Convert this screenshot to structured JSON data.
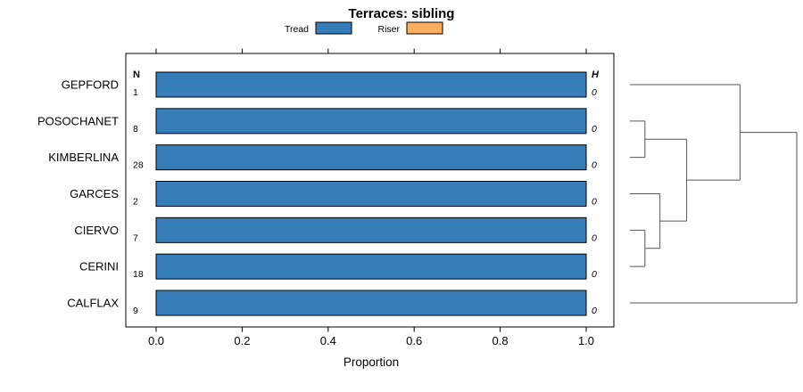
{
  "chart_data": {
    "type": "bar",
    "orientation": "horizontal",
    "title": "Terraces: sibling",
    "xlabel": "Proportion",
    "xlim": [
      0,
      1
    ],
    "x_ticks": [
      0.0,
      0.2,
      0.4,
      0.6,
      0.8,
      1.0
    ],
    "x_tick_labels": [
      "0.0",
      "0.2",
      "0.4",
      "0.6",
      "0.8",
      "1.0"
    ],
    "grid": false,
    "legend_position": "top",
    "series": [
      {
        "name": "Tread",
        "color": "#377EB8"
      },
      {
        "name": "Riser",
        "color": "#FDAE61"
      }
    ],
    "annotations": {
      "n_header": "N",
      "h_header": "H"
    },
    "rows": [
      {
        "label": "GEPFORD",
        "n": "1",
        "h": "0",
        "tread": 1.0,
        "riser": 0.0
      },
      {
        "label": "POSOCHANET",
        "n": "8",
        "h": "0",
        "tread": 1.0,
        "riser": 0.0
      },
      {
        "label": "KIMBERLINA",
        "n": "28",
        "h": "0",
        "tread": 1.0,
        "riser": 0.0
      },
      {
        "label": "GARCES",
        "n": "2",
        "h": "0",
        "tread": 1.0,
        "riser": 0.0
      },
      {
        "label": "CIERVO",
        "n": "7",
        "h": "0",
        "tread": 1.0,
        "riser": 0.0
      },
      {
        "label": "CERINI",
        "n": "18",
        "h": "0",
        "tread": 1.0,
        "riser": 0.0
      },
      {
        "label": "CALFLAX",
        "n": "9",
        "h": "0",
        "tread": 1.0,
        "riser": 0.0
      }
    ],
    "dendrogram": {
      "leaves": [
        "GEPFORD",
        "POSOCHANET",
        "KIMBERLINA",
        "GARCES",
        "CIERVO",
        "CERINI",
        "CALFLAX"
      ],
      "merges": [
        {
          "id": "m1",
          "a": "POSOCHANET",
          "b": "KIMBERLINA",
          "height": 0.09
        },
        {
          "id": "m2",
          "a": "CIERVO",
          "b": "CERINI",
          "height": 0.09
        },
        {
          "id": "m3",
          "a": "GARCES",
          "b": "m2",
          "height": 0.18
        },
        {
          "id": "m4",
          "a": "m1",
          "b": "m3",
          "height": 0.34
        },
        {
          "id": "m5",
          "a": "GEPFORD",
          "b": "m4",
          "height": 0.66
        },
        {
          "id": "m6",
          "a": "m5",
          "b": "CALFLAX",
          "height": 1.0
        }
      ]
    }
  }
}
